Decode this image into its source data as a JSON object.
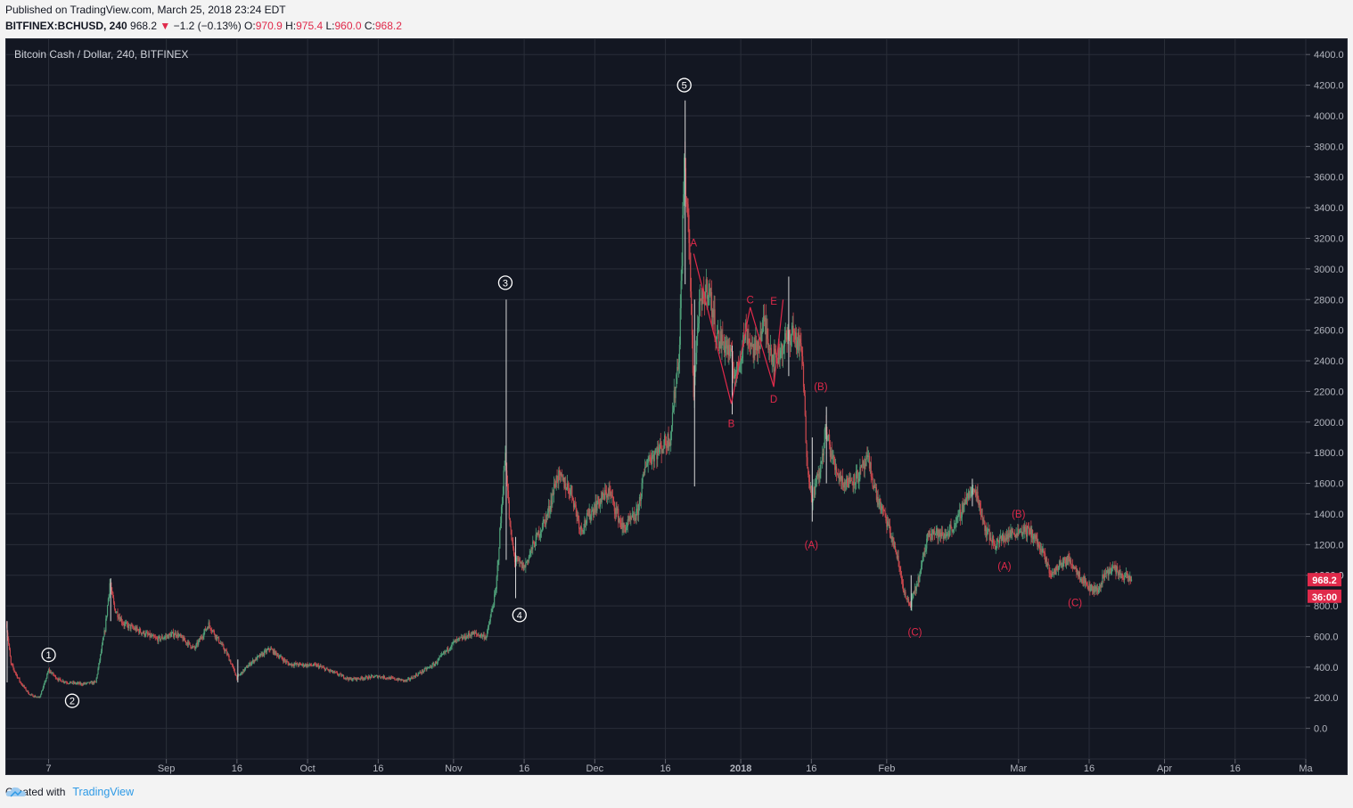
{
  "header": {
    "published": "Published on TradingView.com, March 25, 2018 23:24 EDT",
    "symbol": "BITFINEX:BCHUSD, 240",
    "last": "968.2",
    "down_arrow": "▼",
    "change": "−1.2 (−0.13%)",
    "o_label": "O:",
    "o_value": "970.9",
    "h_label": "H:",
    "h_value": "975.4",
    "l_label": "L:",
    "l_value": "960.0",
    "c_label": "C:",
    "c_value": "968.2"
  },
  "footer": {
    "created_with": "Created with",
    "brand": "TradingView",
    "brand_icon": "cloud-icon"
  },
  "colors": {
    "background": "#131722",
    "grid": "#2a2e39",
    "text": "#b2b5be",
    "up": "#4e9e78",
    "down": "#c9474d",
    "wave_label": "#e0294a",
    "badge": "#e0294a"
  },
  "chart_data": {
    "type": "candlestick",
    "title": "Bitcoin Cash / Dollar, 240, BITFINEX",
    "ylim": [
      -200,
      4500
    ],
    "y_ticks": [
      0,
      200,
      400,
      600,
      800,
      1000,
      1200,
      1400,
      1600,
      1800,
      2000,
      2200,
      2400,
      2600,
      2800,
      3000,
      3200,
      3400,
      3600,
      3800,
      4000,
      4200,
      4400
    ],
    "y_tick_labels": [
      "0.0",
      "200.0",
      "400.0",
      "600.0",
      "800.0",
      "1000.0",
      "1200.0",
      "1400.0",
      "1600.0",
      "1800.0",
      "2000.0",
      "2200.0",
      "2400.0",
      "2600.0",
      "2800.0",
      "3000.0",
      "3200.0",
      "3400.0",
      "3600.0",
      "3800.0",
      "4000.0",
      "4200.0",
      "4400.0"
    ],
    "x_ticks": [
      {
        "date": "2017-08-07",
        "label": "7"
      },
      {
        "date": "2017-09-01",
        "label": "Sep"
      },
      {
        "date": "2017-09-16",
        "label": "16"
      },
      {
        "date": "2017-10-01",
        "label": "Oct"
      },
      {
        "date": "2017-10-16",
        "label": "16"
      },
      {
        "date": "2017-11-01",
        "label": "Nov"
      },
      {
        "date": "2017-11-16",
        "label": "16"
      },
      {
        "date": "2017-12-01",
        "label": "Dec"
      },
      {
        "date": "2017-12-16",
        "label": "16"
      },
      {
        "date": "2018-01-01",
        "label": "2018"
      },
      {
        "date": "2018-01-16",
        "label": "16"
      },
      {
        "date": "2018-02-01",
        "label": "Feb"
      },
      {
        "date": "2018-03-01",
        "label": "Mar"
      },
      {
        "date": "2018-03-16",
        "label": "16"
      },
      {
        "date": "2018-04-01",
        "label": "Apr"
      },
      {
        "date": "2018-04-16",
        "label": "16"
      },
      {
        "date": "2018-05-01",
        "label": "Ma"
      }
    ],
    "x_range": [
      "2017-07-29",
      "2018-05-01"
    ],
    "price_path": [
      {
        "date": "2017-07-29",
        "price": 680
      },
      {
        "date": "2017-07-30",
        "price": 420
      },
      {
        "date": "2017-08-01",
        "price": 300
      },
      {
        "date": "2017-08-02",
        "price": 260
      },
      {
        "date": "2017-08-03",
        "price": 220
      },
      {
        "date": "2017-08-05",
        "price": 200
      },
      {
        "date": "2017-08-06",
        "price": 280
      },
      {
        "date": "2017-08-07",
        "price": 380
      },
      {
        "date": "2017-08-09",
        "price": 320
      },
      {
        "date": "2017-08-11",
        "price": 300
      },
      {
        "date": "2017-08-14",
        "price": 290
      },
      {
        "date": "2017-08-17",
        "price": 300
      },
      {
        "date": "2017-08-19",
        "price": 650
      },
      {
        "date": "2017-08-20",
        "price": 950
      },
      {
        "date": "2017-08-21",
        "price": 780
      },
      {
        "date": "2017-08-23",
        "price": 680
      },
      {
        "date": "2017-08-26",
        "price": 640
      },
      {
        "date": "2017-08-30",
        "price": 580
      },
      {
        "date": "2017-09-03",
        "price": 620
      },
      {
        "date": "2017-09-07",
        "price": 520
      },
      {
        "date": "2017-09-10",
        "price": 680
      },
      {
        "date": "2017-09-14",
        "price": 480
      },
      {
        "date": "2017-09-16",
        "price": 330
      },
      {
        "date": "2017-09-19",
        "price": 430
      },
      {
        "date": "2017-09-23",
        "price": 520
      },
      {
        "date": "2017-09-27",
        "price": 420
      },
      {
        "date": "2017-10-03",
        "price": 410
      },
      {
        "date": "2017-10-10",
        "price": 320
      },
      {
        "date": "2017-10-16",
        "price": 340
      },
      {
        "date": "2017-10-22",
        "price": 310
      },
      {
        "date": "2017-10-28",
        "price": 420
      },
      {
        "date": "2017-11-01",
        "price": 560
      },
      {
        "date": "2017-11-05",
        "price": 620
      },
      {
        "date": "2017-11-08",
        "price": 600
      },
      {
        "date": "2017-11-10",
        "price": 900
      },
      {
        "date": "2017-11-12",
        "price": 1800
      },
      {
        "date": "2017-11-13",
        "price": 1300
      },
      {
        "date": "2017-11-14",
        "price": 1100
      },
      {
        "date": "2017-11-16",
        "price": 1050
      },
      {
        "date": "2017-11-18",
        "price": 1200
      },
      {
        "date": "2017-11-21",
        "price": 1400
      },
      {
        "date": "2017-11-23",
        "price": 1650
      },
      {
        "date": "2017-11-26",
        "price": 1550
      },
      {
        "date": "2017-11-28",
        "price": 1300
      },
      {
        "date": "2017-12-01",
        "price": 1450
      },
      {
        "date": "2017-12-04",
        "price": 1550
      },
      {
        "date": "2017-12-07",
        "price": 1300
      },
      {
        "date": "2017-12-10",
        "price": 1400
      },
      {
        "date": "2017-12-12",
        "price": 1750
      },
      {
        "date": "2017-12-14",
        "price": 1800
      },
      {
        "date": "2017-12-17",
        "price": 1900
      },
      {
        "date": "2017-12-19",
        "price": 2500
      },
      {
        "date": "2017-12-20",
        "price": 3700
      },
      {
        "date": "2017-12-21",
        "price": 3200
      },
      {
        "date": "2017-12-22",
        "price": 2200
      },
      {
        "date": "2017-12-23",
        "price": 2700
      },
      {
        "date": "2017-12-25",
        "price": 2900
      },
      {
        "date": "2017-12-27",
        "price": 2550
      },
      {
        "date": "2017-12-29",
        "price": 2500
      },
      {
        "date": "2017-12-31",
        "price": 2300
      },
      {
        "date": "2018-01-02",
        "price": 2600
      },
      {
        "date": "2018-01-04",
        "price": 2450
      },
      {
        "date": "2018-01-06",
        "price": 2650
      },
      {
        "date": "2018-01-08",
        "price": 2400
      },
      {
        "date": "2018-01-10",
        "price": 2500
      },
      {
        "date": "2018-01-12",
        "price": 2600
      },
      {
        "date": "2018-01-14",
        "price": 2450
      },
      {
        "date": "2018-01-15",
        "price": 1800
      },
      {
        "date": "2018-01-16",
        "price": 1500
      },
      {
        "date": "2018-01-18",
        "price": 1700
      },
      {
        "date": "2018-01-19",
        "price": 1950
      },
      {
        "date": "2018-01-21",
        "price": 1700
      },
      {
        "date": "2018-01-23",
        "price": 1600
      },
      {
        "date": "2018-01-26",
        "price": 1650
      },
      {
        "date": "2018-01-28",
        "price": 1750
      },
      {
        "date": "2018-01-30",
        "price": 1500
      },
      {
        "date": "2018-02-01",
        "price": 1350
      },
      {
        "date": "2018-02-03",
        "price": 1150
      },
      {
        "date": "2018-02-05",
        "price": 850
      },
      {
        "date": "2018-02-06",
        "price": 800
      },
      {
        "date": "2018-02-08",
        "price": 1000
      },
      {
        "date": "2018-02-10",
        "price": 1300
      },
      {
        "date": "2018-02-13",
        "price": 1250
      },
      {
        "date": "2018-02-16",
        "price": 1350
      },
      {
        "date": "2018-02-18",
        "price": 1520
      },
      {
        "date": "2018-02-20",
        "price": 1550
      },
      {
        "date": "2018-02-22",
        "price": 1300
      },
      {
        "date": "2018-02-24",
        "price": 1200
      },
      {
        "date": "2018-02-26",
        "price": 1250
      },
      {
        "date": "2018-02-28",
        "price": 1280
      },
      {
        "date": "2018-03-02",
        "price": 1300
      },
      {
        "date": "2018-03-04",
        "price": 1270
      },
      {
        "date": "2018-03-06",
        "price": 1150
      },
      {
        "date": "2018-03-08",
        "price": 1000
      },
      {
        "date": "2018-03-10",
        "price": 1080
      },
      {
        "date": "2018-03-12",
        "price": 1100
      },
      {
        "date": "2018-03-14",
        "price": 1000
      },
      {
        "date": "2018-03-16",
        "price": 920
      },
      {
        "date": "2018-03-18",
        "price": 900
      },
      {
        "date": "2018-03-19",
        "price": 1000
      },
      {
        "date": "2018-03-21",
        "price": 1050
      },
      {
        "date": "2018-03-23",
        "price": 1000
      },
      {
        "date": "2018-03-25",
        "price": 968.2
      }
    ],
    "spikes": [
      {
        "date": "2017-07-29",
        "high": 700,
        "low": 300
      },
      {
        "date": "2017-08-20",
        "high": 980,
        "low": 700
      },
      {
        "date": "2017-09-16",
        "high": 450,
        "low": 300
      },
      {
        "date": "2017-11-12",
        "high": 2800,
        "low": 1100
      },
      {
        "date": "2017-11-14",
        "high": 1250,
        "low": 850
      },
      {
        "date": "2017-12-20",
        "high": 4100,
        "low": 2900
      },
      {
        "date": "2017-12-22",
        "high": 2800,
        "low": 1580
      },
      {
        "date": "2017-12-30",
        "high": 2500,
        "low": 2050
      },
      {
        "date": "2018-01-11",
        "high": 2950,
        "low": 2300
      },
      {
        "date": "2018-01-16",
        "high": 1900,
        "low": 1350
      },
      {
        "date": "2018-01-19",
        "high": 2100,
        "low": 1600
      },
      {
        "date": "2018-02-06",
        "high": 1000,
        "low": 770
      },
      {
        "date": "2018-02-19",
        "high": 1630,
        "low": 1450
      }
    ],
    "wave_labels": [
      {
        "text": "1",
        "date": "2017-08-07",
        "price": 480,
        "style": "circle"
      },
      {
        "text": "2",
        "date": "2017-08-12",
        "price": 180,
        "style": "circle"
      },
      {
        "text": "3",
        "date": "2017-11-12",
        "price": 2910,
        "style": "circle"
      },
      {
        "text": "4",
        "date": "2017-11-15",
        "price": 740,
        "style": "circle"
      },
      {
        "text": "5",
        "date": "2017-12-20",
        "price": 4200,
        "style": "circle"
      },
      {
        "text": "A",
        "date": "2017-12-22",
        "price": 3170,
        "style": "red"
      },
      {
        "text": "B",
        "date": "2017-12-30",
        "price": 1990,
        "style": "red"
      },
      {
        "text": "C",
        "date": "2018-01-03",
        "price": 2800,
        "style": "red"
      },
      {
        "text": "D",
        "date": "2018-01-08",
        "price": 2150,
        "style": "red"
      },
      {
        "text": "E",
        "date": "2018-01-08",
        "price": 2790,
        "style": "red"
      },
      {
        "text": "(A)",
        "date": "2018-01-16",
        "price": 1200,
        "style": "red"
      },
      {
        "text": "(B)",
        "date": "2018-01-18",
        "price": 2230,
        "style": "red"
      },
      {
        "text": "(C)",
        "date": "2018-02-07",
        "price": 630,
        "style": "red"
      },
      {
        "text": "(A)",
        "date": "2018-02-26",
        "price": 1060,
        "style": "red"
      },
      {
        "text": "(B)",
        "date": "2018-03-01",
        "price": 1400,
        "style": "red"
      },
      {
        "text": "(C)",
        "date": "2018-03-13",
        "price": 820,
        "style": "red"
      }
    ],
    "triangle_path": [
      {
        "date": "2017-12-22",
        "price": 3100
      },
      {
        "date": "2017-12-30",
        "price": 2120
      },
      {
        "date": "2018-01-03",
        "price": 2750
      },
      {
        "date": "2018-01-08",
        "price": 2230
      },
      {
        "date": "2018-01-10",
        "price": 2800
      }
    ],
    "badges": [
      {
        "text": "968.2",
        "price": 968.2
      },
      {
        "text": "36:00",
        "price": 860
      }
    ],
    "partial_tick_label": "1000.0"
  }
}
